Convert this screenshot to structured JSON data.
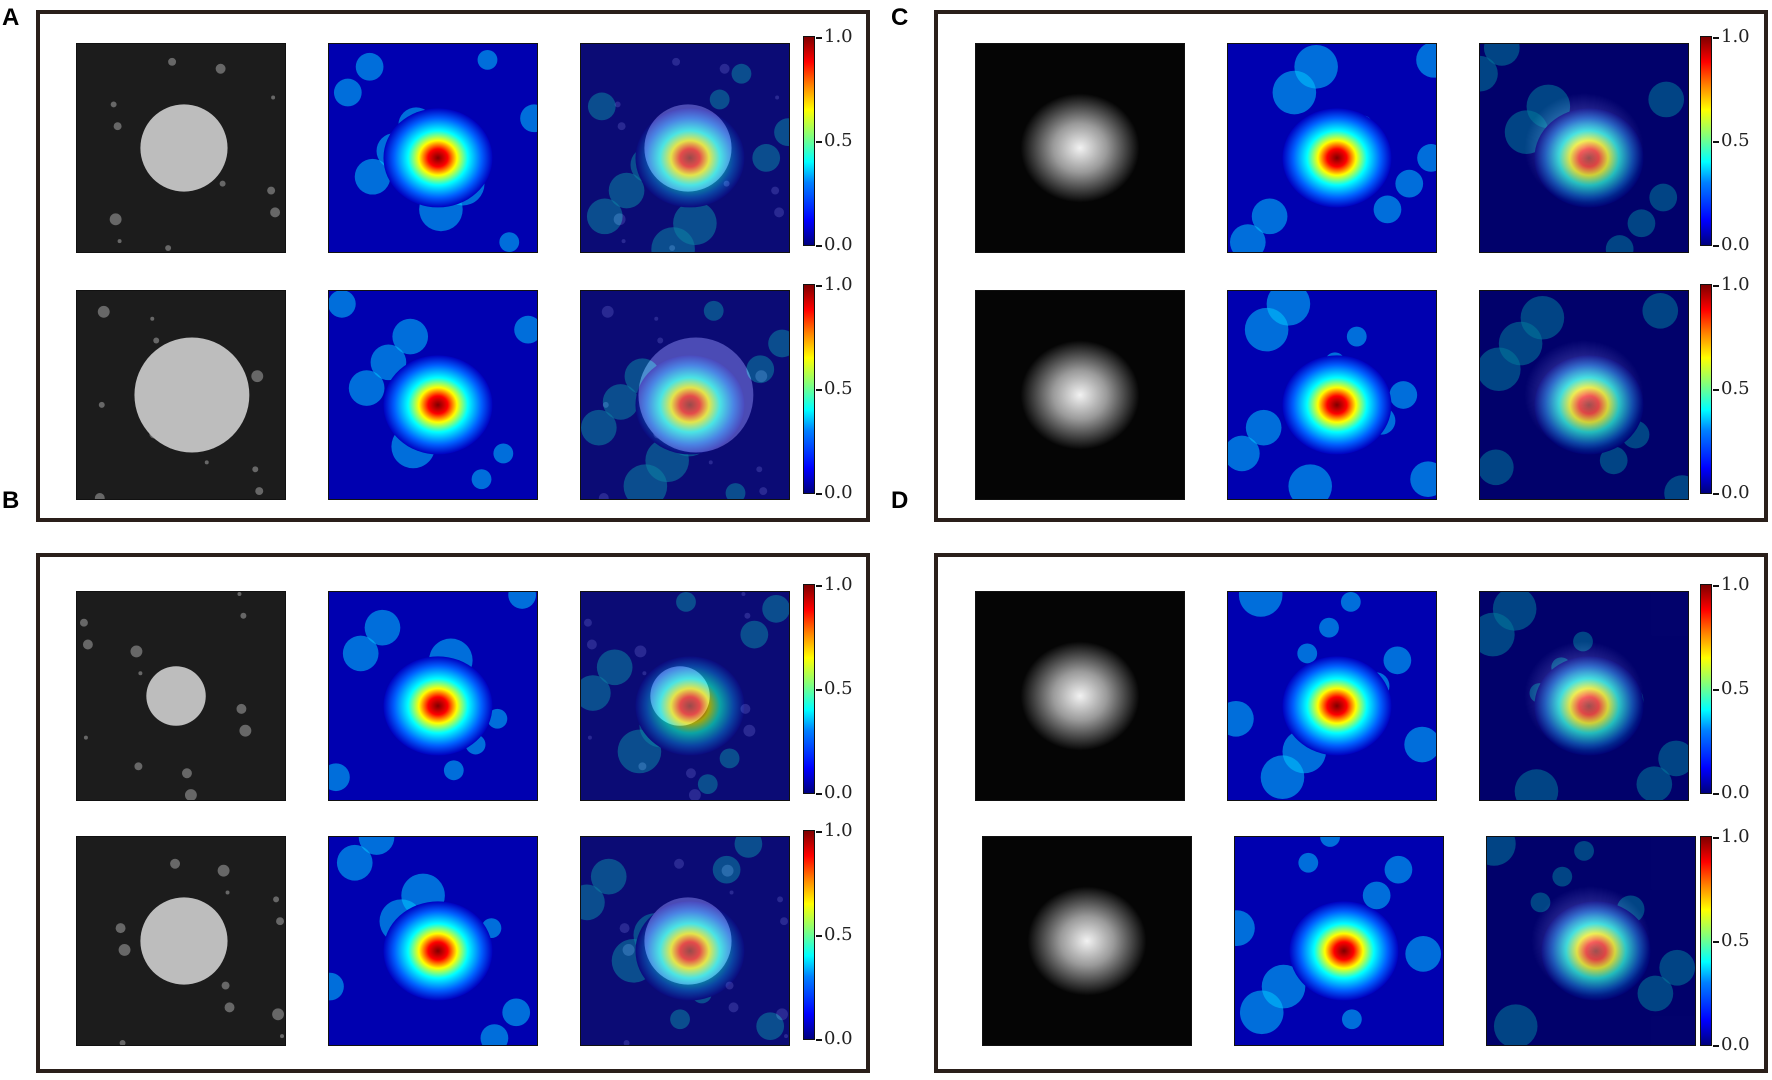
{
  "panels": [
    {
      "label": "A"
    },
    {
      "label": "B"
    },
    {
      "label": "C"
    },
    {
      "label": "D"
    }
  ],
  "colorbar": {
    "ticks": [
      "1.0",
      "0.5",
      "0.0"
    ],
    "colormap": "jet",
    "colors": [
      "#00007f",
      "#0000ff",
      "#00ffff",
      "#ffff00",
      "#ff0000",
      "#7f0000"
    ]
  },
  "tile_kinds": [
    "ct-image",
    "heatmap",
    "overlay"
  ],
  "frame_color": "#2a1f1a"
}
